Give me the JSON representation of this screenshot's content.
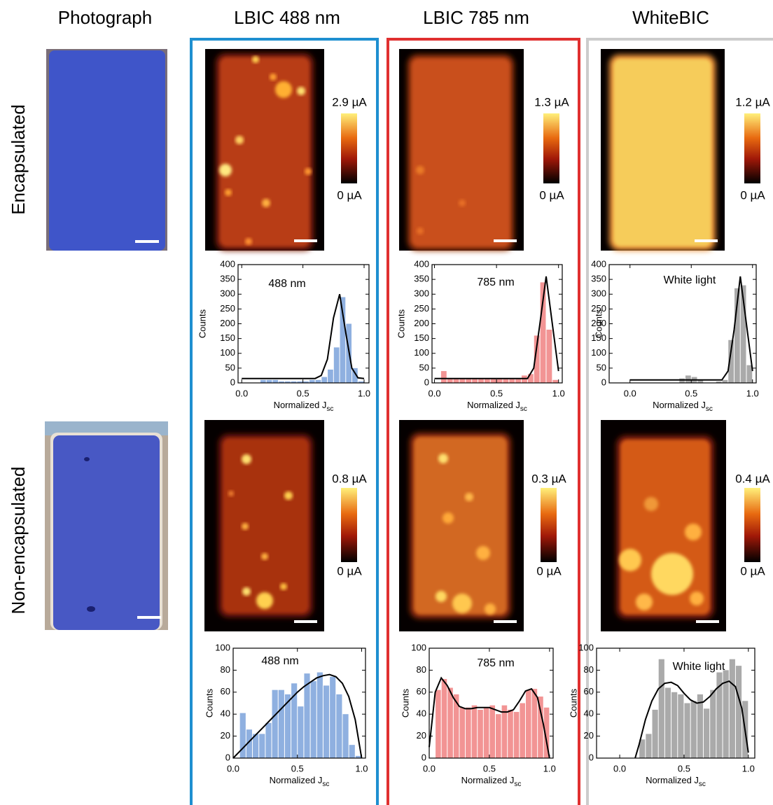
{
  "column_titles": [
    "Photograph",
    "LBIC 488 nm",
    "LBIC 785 nm",
    "WhiteBIC"
  ],
  "row_titles": [
    "Encapsulated",
    "Non-encapsulated"
  ],
  "colorbars": [
    {
      "max": "2.9 µA",
      "min": "0 µA"
    },
    {
      "max": "1.3 µA",
      "min": "0 µA"
    },
    {
      "max": "1.2 µA",
      "min": "0 µA"
    },
    {
      "max": "0.8 µA",
      "min": "0 µA"
    },
    {
      "max": "0.3 µA",
      "min": "0 µA"
    },
    {
      "max": "0.4 µA",
      "min": "0 µA"
    }
  ],
  "chart_data": [
    {
      "type": "histogram",
      "annotation": "488 nm",
      "color": "#8fb0e0",
      "bins": [
        0,
        0.05,
        0.1,
        0.15,
        0.2,
        0.25,
        0.3,
        0.35,
        0.4,
        0.45,
        0.5,
        0.55,
        0.6,
        0.65,
        0.7,
        0.75,
        0.8,
        0.85,
        0.9,
        0.95,
        1.0
      ],
      "counts": [
        0,
        0,
        0,
        10,
        10,
        10,
        5,
        5,
        5,
        5,
        5,
        10,
        10,
        20,
        45,
        120,
        290,
        200,
        50,
        5
      ],
      "fit": {
        "color": "#000000",
        "x": [
          0,
          0.05,
          0.1,
          0.15,
          0.2,
          0.25,
          0.3,
          0.35,
          0.4,
          0.45,
          0.5,
          0.55,
          0.6,
          0.65,
          0.7,
          0.75,
          0.8,
          0.85,
          0.9,
          0.95,
          1.0
        ],
        "values": [
          15,
          15,
          15,
          15,
          15,
          15,
          15,
          15,
          15,
          15,
          15,
          15,
          15,
          25,
          80,
          220,
          300,
          170,
          50,
          17,
          15
        ]
      },
      "xlim": [
        -0.03,
        1.04
      ],
      "ylim": [
        0,
        400
      ],
      "xticks": [
        {
          "value": 0,
          "label": "0.0"
        },
        {
          "value": 0.5,
          "label": "0.5"
        },
        {
          "value": 1,
          "label": "1.0"
        }
      ],
      "yticks": [
        0,
        50,
        100,
        150,
        200,
        250,
        300,
        350,
        400
      ],
      "xlabel": {
        "text": "Normalized J",
        "subscript": "sc"
      },
      "ylabel": "Counts"
    },
    {
      "type": "histogram",
      "annotation": "785 nm",
      "color": "#f29494",
      "bins": [
        0,
        0.05,
        0.1,
        0.15,
        0.2,
        0.25,
        0.3,
        0.35,
        0.4,
        0.45,
        0.5,
        0.55,
        0.6,
        0.65,
        0.7,
        0.75,
        0.8,
        0.85,
        0.9,
        0.95,
        1.0
      ],
      "counts": [
        0,
        40,
        15,
        15,
        15,
        15,
        15,
        15,
        15,
        15,
        15,
        15,
        15,
        15,
        25,
        30,
        160,
        340,
        180,
        10
      ],
      "fit": {
        "color": "#000000",
        "x": [
          0,
          0.05,
          0.1,
          0.15,
          0.2,
          0.25,
          0.3,
          0.35,
          0.4,
          0.45,
          0.5,
          0.55,
          0.6,
          0.65,
          0.7,
          0.75,
          0.8,
          0.85,
          0.9,
          0.95,
          1.0
        ],
        "values": [
          15,
          15,
          15,
          15,
          15,
          15,
          15,
          15,
          15,
          15,
          15,
          15,
          15,
          15,
          15,
          15,
          50,
          200,
          360,
          200,
          40
        ]
      },
      "xlim": [
        -0.02,
        1.03
      ],
      "ylim": [
        0,
        400
      ],
      "xticks": [
        {
          "value": 0,
          "label": "0.0"
        },
        {
          "value": 0.5,
          "label": "0.5"
        },
        {
          "value": 1,
          "label": "1.0"
        }
      ],
      "yticks": [
        0,
        50,
        100,
        150,
        200,
        250,
        300,
        350,
        400
      ],
      "xlabel": {
        "text": "Normalized J",
        "subscript": "sc"
      },
      "ylabel": "Counts"
    },
    {
      "type": "histogram",
      "annotation": "White light",
      "color": "#aaaaaa",
      "bins": [
        0,
        0.05,
        0.1,
        0.15,
        0.2,
        0.25,
        0.3,
        0.35,
        0.4,
        0.45,
        0.5,
        0.55,
        0.6,
        0.65,
        0.7,
        0.75,
        0.8,
        0.85,
        0.9,
        0.95,
        1.0
      ],
      "counts": [
        0,
        0,
        0,
        0,
        0,
        0,
        0,
        0,
        15,
        25,
        20,
        10,
        0,
        0,
        5,
        10,
        145,
        320,
        330,
        60
      ],
      "fit": {
        "color": "#000000",
        "x": [
          0,
          0.05,
          0.1,
          0.15,
          0.2,
          0.25,
          0.3,
          0.35,
          0.4,
          0.45,
          0.5,
          0.55,
          0.6,
          0.65,
          0.7,
          0.75,
          0.8,
          0.85,
          0.9,
          0.95,
          1.0
        ],
        "values": [
          10,
          10,
          10,
          10,
          10,
          10,
          10,
          10,
          10,
          10,
          10,
          10,
          10,
          10,
          10,
          10,
          40,
          180,
          360,
          200,
          40
        ]
      },
      "xlim": [
        -0.17,
        1.03
      ],
      "ylim": [
        0,
        400
      ],
      "xticks": [
        {
          "value": 0,
          "label": "0.0"
        },
        {
          "value": 0.5,
          "label": "0.5"
        },
        {
          "value": 1,
          "label": "1.0"
        }
      ],
      "yticks": [
        0,
        50,
        100,
        150,
        200,
        250,
        300,
        350,
        400
      ],
      "xlabel": {
        "text": "Normalized J",
        "subscript": "sc"
      },
      "ylabel": "Counts"
    },
    {
      "type": "histogram",
      "annotation": "488 nm",
      "color": "#8fb0e0",
      "bins": [
        0.05,
        0.1,
        0.15,
        0.2,
        0.25,
        0.3,
        0.35,
        0.4,
        0.45,
        0.5,
        0.55,
        0.6,
        0.65,
        0.7,
        0.75,
        0.8,
        0.85,
        0.9,
        0.95,
        1.0
      ],
      "counts": [
        41,
        26,
        22,
        22,
        32,
        62,
        62,
        58,
        68,
        47,
        77,
        70,
        78,
        66,
        74,
        58,
        40,
        12,
        2
      ],
      "fit": {
        "color": "#000000",
        "x": [
          0,
          0.05,
          0.1,
          0.15,
          0.2,
          0.25,
          0.3,
          0.35,
          0.4,
          0.45,
          0.5,
          0.55,
          0.6,
          0.65,
          0.7,
          0.75,
          0.8,
          0.85,
          0.9,
          0.95,
          1.0
        ],
        "values": [
          0,
          6,
          12,
          18,
          24,
          30,
          36,
          42,
          48,
          54,
          60,
          65,
          69,
          73,
          75,
          76,
          74,
          68,
          56,
          35,
          0
        ]
      },
      "xlim": [
        0,
        1.03
      ],
      "ylim": [
        0,
        100
      ],
      "xticks": [
        {
          "value": 0,
          "label": "0.0"
        },
        {
          "value": 0.5,
          "label": "0.5"
        },
        {
          "value": 1,
          "label": "1.0"
        }
      ],
      "yticks": [
        0,
        20,
        40,
        60,
        80,
        100
      ],
      "xlabel": {
        "text": "Normalized J",
        "subscript": "sc"
      },
      "ylabel": "Counts"
    },
    {
      "type": "histogram",
      "annotation": "785 nm",
      "color": "#f29494",
      "bins": [
        0.05,
        0.1,
        0.15,
        0.2,
        0.25,
        0.3,
        0.35,
        0.4,
        0.45,
        0.5,
        0.55,
        0.6,
        0.65,
        0.7,
        0.75,
        0.8,
        0.85,
        0.9,
        0.95,
        1.0
      ],
      "counts": [
        62,
        72,
        64,
        58,
        46,
        46,
        48,
        44,
        46,
        48,
        40,
        48,
        44,
        42,
        50,
        62,
        63,
        56,
        46
      ],
      "fit": {
        "color": "#000000",
        "x": [
          0,
          0.05,
          0.1,
          0.15,
          0.2,
          0.25,
          0.3,
          0.35,
          0.4,
          0.45,
          0.5,
          0.55,
          0.6,
          0.65,
          0.7,
          0.75,
          0.8,
          0.85,
          0.9,
          0.95,
          1.0
        ],
        "values": [
          10,
          60,
          73,
          66,
          55,
          47,
          45,
          45,
          46,
          46,
          46,
          44,
          42,
          42,
          44,
          52,
          61,
          63,
          55,
          30,
          0
        ]
      },
      "xlim": [
        0,
        1.03
      ],
      "ylim": [
        0,
        100
      ],
      "xticks": [
        {
          "value": 0,
          "label": "0.0"
        },
        {
          "value": 0.5,
          "label": "0.5"
        },
        {
          "value": 1,
          "label": "1.0"
        }
      ],
      "yticks": [
        0,
        20,
        40,
        60,
        80,
        100
      ],
      "xlabel": {
        "text": "Normalized J",
        "subscript": "sc"
      },
      "ylabel": "Counts"
    },
    {
      "type": "histogram",
      "annotation": "White light",
      "color": "#aaaaaa",
      "bins": [
        0.15,
        0.2,
        0.25,
        0.3,
        0.35,
        0.4,
        0.45,
        0.5,
        0.55,
        0.6,
        0.65,
        0.7,
        0.75,
        0.8,
        0.85,
        0.9,
        0.95,
        1.0
      ],
      "counts": [
        17,
        22,
        44,
        90,
        64,
        60,
        58,
        50,
        52,
        58,
        45,
        62,
        78,
        80,
        90,
        84,
        52
      ],
      "fit": {
        "color": "#000000",
        "x": [
          0.12,
          0.15,
          0.2,
          0.25,
          0.3,
          0.35,
          0.4,
          0.45,
          0.5,
          0.55,
          0.6,
          0.65,
          0.7,
          0.75,
          0.8,
          0.85,
          0.9,
          0.95,
          1.0
        ],
        "values": [
          0,
          12,
          35,
          52,
          63,
          68,
          69,
          66,
          59,
          53,
          50,
          51,
          56,
          63,
          68,
          70,
          65,
          45,
          5
        ]
      },
      "xlim": [
        -0.18,
        1.05
      ],
      "ylim": [
        0,
        100
      ],
      "xticks": [
        {
          "value": 0,
          "label": "0.0"
        },
        {
          "value": 0.5,
          "label": "0.5"
        },
        {
          "value": 1,
          "label": "1.0"
        }
      ],
      "yticks": [
        0,
        20,
        40,
        60,
        80,
        100
      ],
      "xlabel": {
        "text": "Normalized J",
        "subscript": "sc"
      },
      "ylabel": "Counts"
    }
  ]
}
